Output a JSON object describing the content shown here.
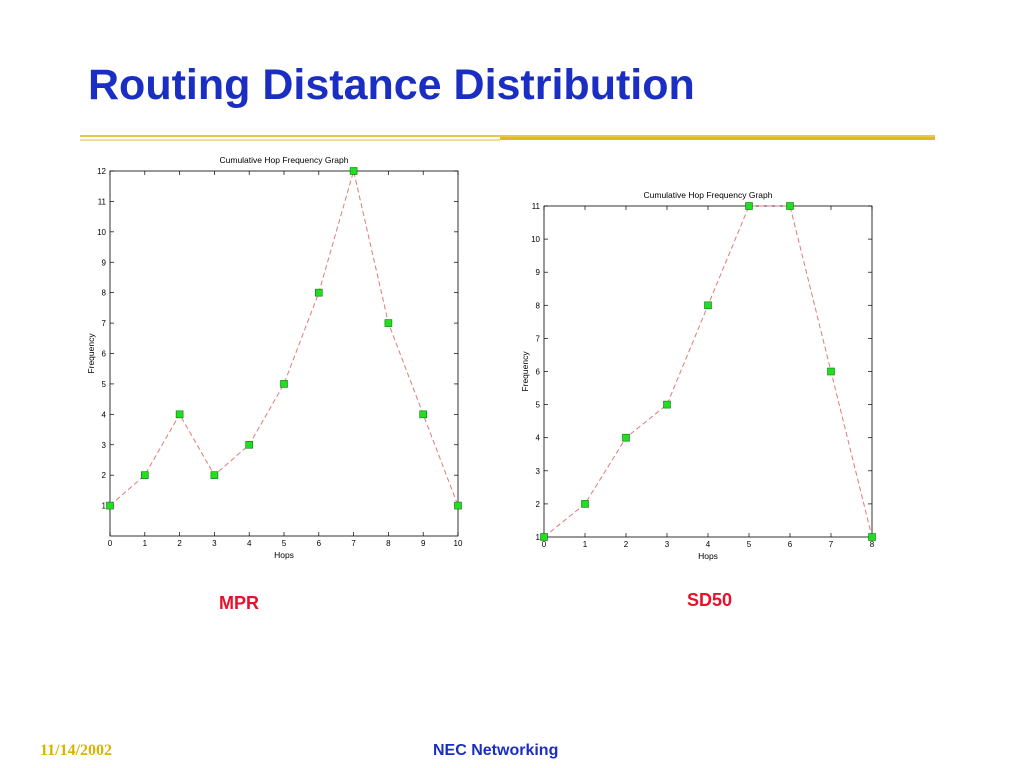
{
  "slide": {
    "title": "Routing Distance Distribution",
    "footer_date": "11/14/2002",
    "footer_org": "NEC Networking",
    "colors": {
      "title": "#1a2ec4",
      "rule": "#e8c84a",
      "caption": "#e8102a",
      "marker": "#22dd22",
      "line": "#e07a7a"
    }
  },
  "chart_data": [
    {
      "id": "mpr",
      "type": "line",
      "title": "Cumulative Hop Frequency Graph",
      "xlabel": "Hops",
      "ylabel": "Frequency",
      "caption": "MPR",
      "xlim": [
        0,
        10
      ],
      "ylim": [
        0,
        12
      ],
      "xticks": [
        "0",
        "1",
        "2",
        "3",
        "4",
        "5",
        "6",
        "7",
        "8",
        "9",
        "10"
      ],
      "yticks": [
        "1",
        "2",
        "3",
        "4",
        "5",
        "6",
        "7",
        "8",
        "9",
        "10",
        "11",
        "12"
      ],
      "grid": false,
      "x": [
        0,
        1,
        2,
        3,
        4,
        5,
        6,
        7,
        8,
        9,
        10
      ],
      "y": [
        1,
        2,
        4,
        2,
        3,
        5,
        8,
        12,
        7,
        4,
        1
      ]
    },
    {
      "id": "sd50",
      "type": "line",
      "title": "Cumulative Hop Frequency Graph",
      "xlabel": "Hops",
      "ylabel": "Frequency",
      "caption": "SD50",
      "xlim": [
        0,
        8
      ],
      "ylim": [
        1,
        11
      ],
      "xticks": [
        "0",
        "1",
        "2",
        "3",
        "4",
        "5",
        "6",
        "7",
        "8"
      ],
      "yticks": [
        "1",
        "2",
        "3",
        "4",
        "5",
        "6",
        "7",
        "8",
        "9",
        "10",
        "11"
      ],
      "grid": false,
      "x": [
        0,
        1,
        2,
        3,
        4,
        5,
        6,
        7,
        8
      ],
      "y": [
        1,
        2,
        4,
        5,
        8,
        11,
        11,
        6,
        1
      ]
    }
  ]
}
